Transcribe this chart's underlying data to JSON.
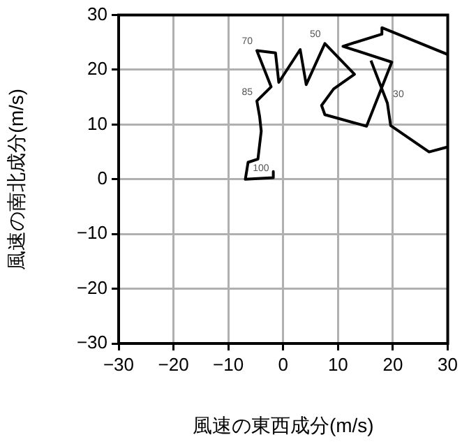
{
  "chart_data": {
    "type": "line",
    "xlabel": "風速の東西成分(m/s)",
    "ylabel": "風速の南北成分(m/s)",
    "x": [
      -1.8,
      -1.8,
      -6.9,
      -6.4,
      -4.6,
      -4.3,
      -4.0,
      -4.3,
      -4.8,
      -2.2,
      -4.8,
      -1.4,
      -0.8,
      3.1,
      4.2,
      7.6,
      13.0,
      9.2,
      7.0,
      7.6,
      15.2,
      19.8,
      10.9,
      17.9,
      18.0,
      30,
      null,
      30,
      26.6,
      19.6,
      19.0,
      16.0
    ],
    "series": [
      {
        "color": "#000000",
        "values": [
          1.4,
          0.3,
          0,
          3.1,
          3.7,
          6.3,
          8.8,
          11.5,
          14.3,
          16.9,
          23.5,
          23.1,
          17.7,
          23.7,
          17.3,
          24.8,
          19.2,
          16.5,
          13.5,
          11.8,
          9.7,
          21.4,
          24.3,
          26.5,
          27.7,
          22.8,
          null,
          5.9,
          5.0,
          9.8,
          13.9,
          21.7
        ]
      }
    ],
    "xlim": [
      -30,
      30
    ],
    "xticks": [
      -30,
      -20,
      -10,
      0,
      10,
      20,
      30
    ],
    "ylim": [
      -30,
      30
    ],
    "yticks": [
      -30,
      -20,
      -10,
      0,
      10,
      20,
      30
    ],
    "grid": true,
    "legend": false,
    "marker": "none",
    "line_style": "solid",
    "annotations": [
      {
        "text": "100",
        "x": -1.8,
        "y": 0.3
      },
      {
        "text": "85",
        "x": -4.8,
        "y": 14.3
      },
      {
        "text": "70",
        "x": -4.8,
        "y": 23.5
      },
      {
        "text": "50",
        "x": 7.6,
        "y": 24.8
      },
      {
        "text": "30",
        "x": 19.0,
        "y": 13.9
      }
    ]
  }
}
